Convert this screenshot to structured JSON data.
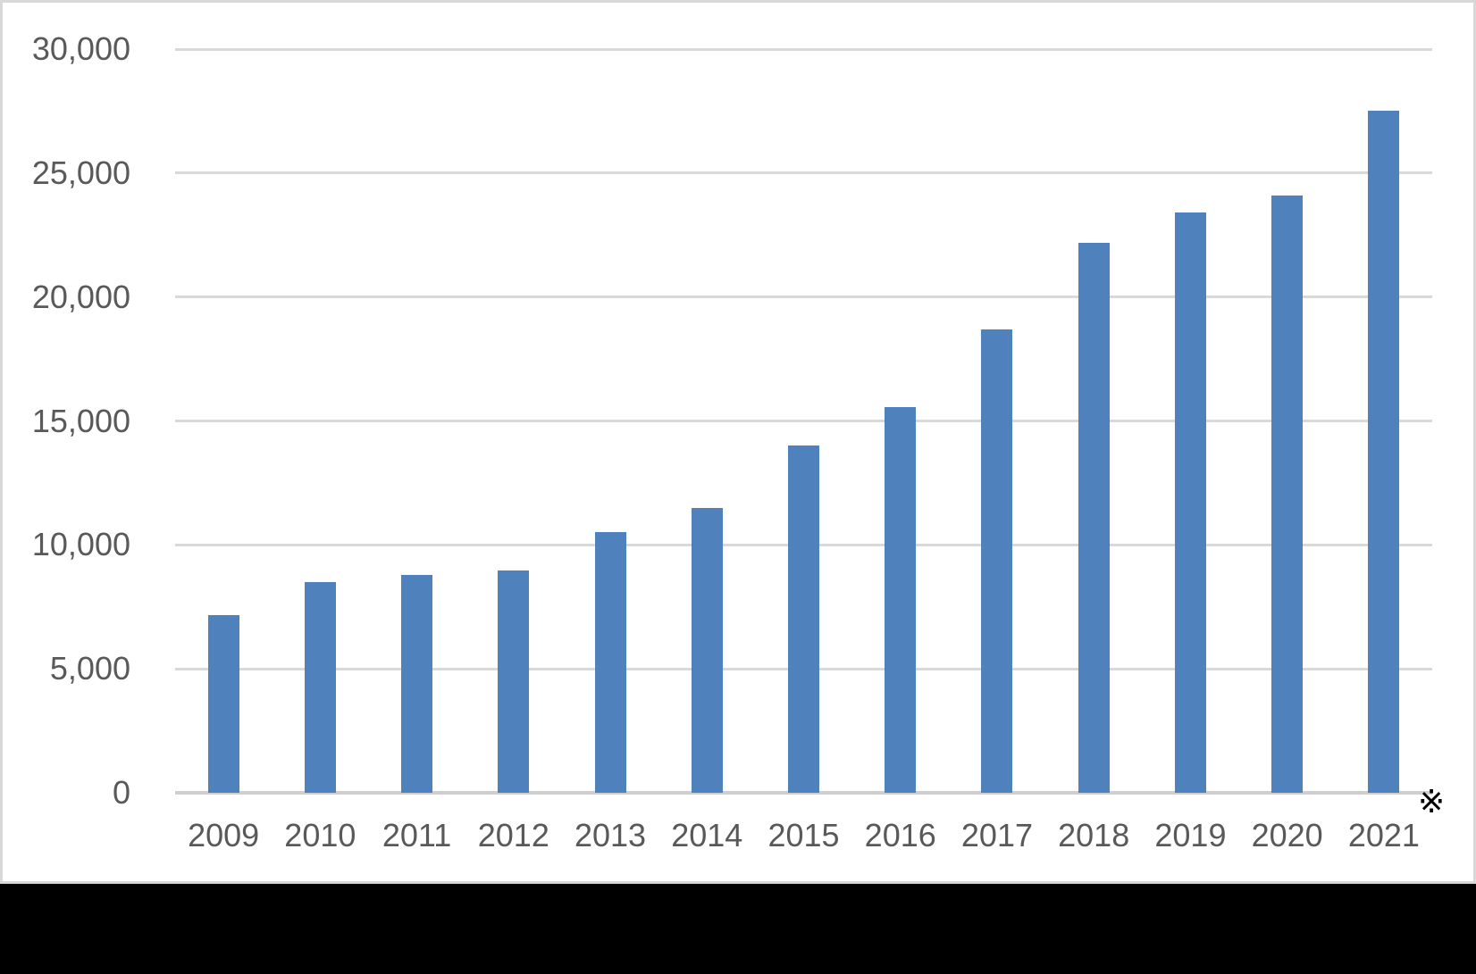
{
  "chart_data": {
    "type": "bar",
    "categories": [
      "2009",
      "2010",
      "2011",
      "2012",
      "2013",
      "2014",
      "2015",
      "2016",
      "2017",
      "2018",
      "2019",
      "2020",
      "2021"
    ],
    "values": [
      7150,
      8500,
      8800,
      8950,
      10500,
      11500,
      14000,
      15550,
      18700,
      22200,
      23400,
      24100,
      27500
    ],
    "ylim": [
      0,
      30000
    ],
    "yticks": [
      {
        "value": 0,
        "label": "0"
      },
      {
        "value": 5000,
        "label": "5,000"
      },
      {
        "value": 10000,
        "label": "10,000"
      },
      {
        "value": 15000,
        "label": "15,000"
      },
      {
        "value": 20000,
        "label": "20,000"
      },
      {
        "value": 25000,
        "label": "25,000"
      },
      {
        "value": 30000,
        "label": "30,000"
      }
    ],
    "grid": true,
    "legend": false,
    "annotation": "※",
    "bar_color": "#4F81BD",
    "gridline_color": "#D9D9D9",
    "axis_line_color": "#D0CECE",
    "label_color": "#595959"
  }
}
